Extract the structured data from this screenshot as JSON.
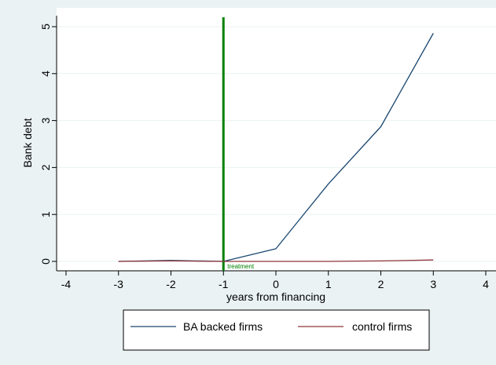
{
  "chart_data": {
    "type": "line",
    "x": [
      -3,
      -2,
      -1,
      0,
      1,
      2,
      3
    ],
    "series": [
      {
        "name": "BA backed firms",
        "color": "#1a476f",
        "values": [
          0.0,
          0.02,
          0.0,
          0.27,
          1.65,
          2.87,
          4.86
        ]
      },
      {
        "name": "control firms",
        "color": "#90353b",
        "values": [
          0.0,
          0.01,
          0.0,
          0.0,
          0.0,
          0.01,
          0.03
        ]
      }
    ],
    "xlabel": "years from financing",
    "ylabel": "Bank debt",
    "xlim": [
      -4,
      4
    ],
    "ylim": [
      0,
      5
    ],
    "xticks": [
      -4,
      -3,
      -2,
      -1,
      0,
      1,
      2,
      3,
      4
    ],
    "yticks": [
      0,
      1,
      2,
      3,
      4,
      5
    ],
    "xtick_labels": [
      "-4",
      "-3",
      "-2",
      "-1",
      "0",
      "1",
      "2",
      "3",
      "4"
    ],
    "ytick_labels": [
      "0",
      "1",
      "2",
      "3",
      "4",
      "5"
    ],
    "vline": {
      "x": -1,
      "label": "treatment",
      "color": "#008000"
    },
    "grid": "horizontal",
    "legend_position": "bottom"
  }
}
